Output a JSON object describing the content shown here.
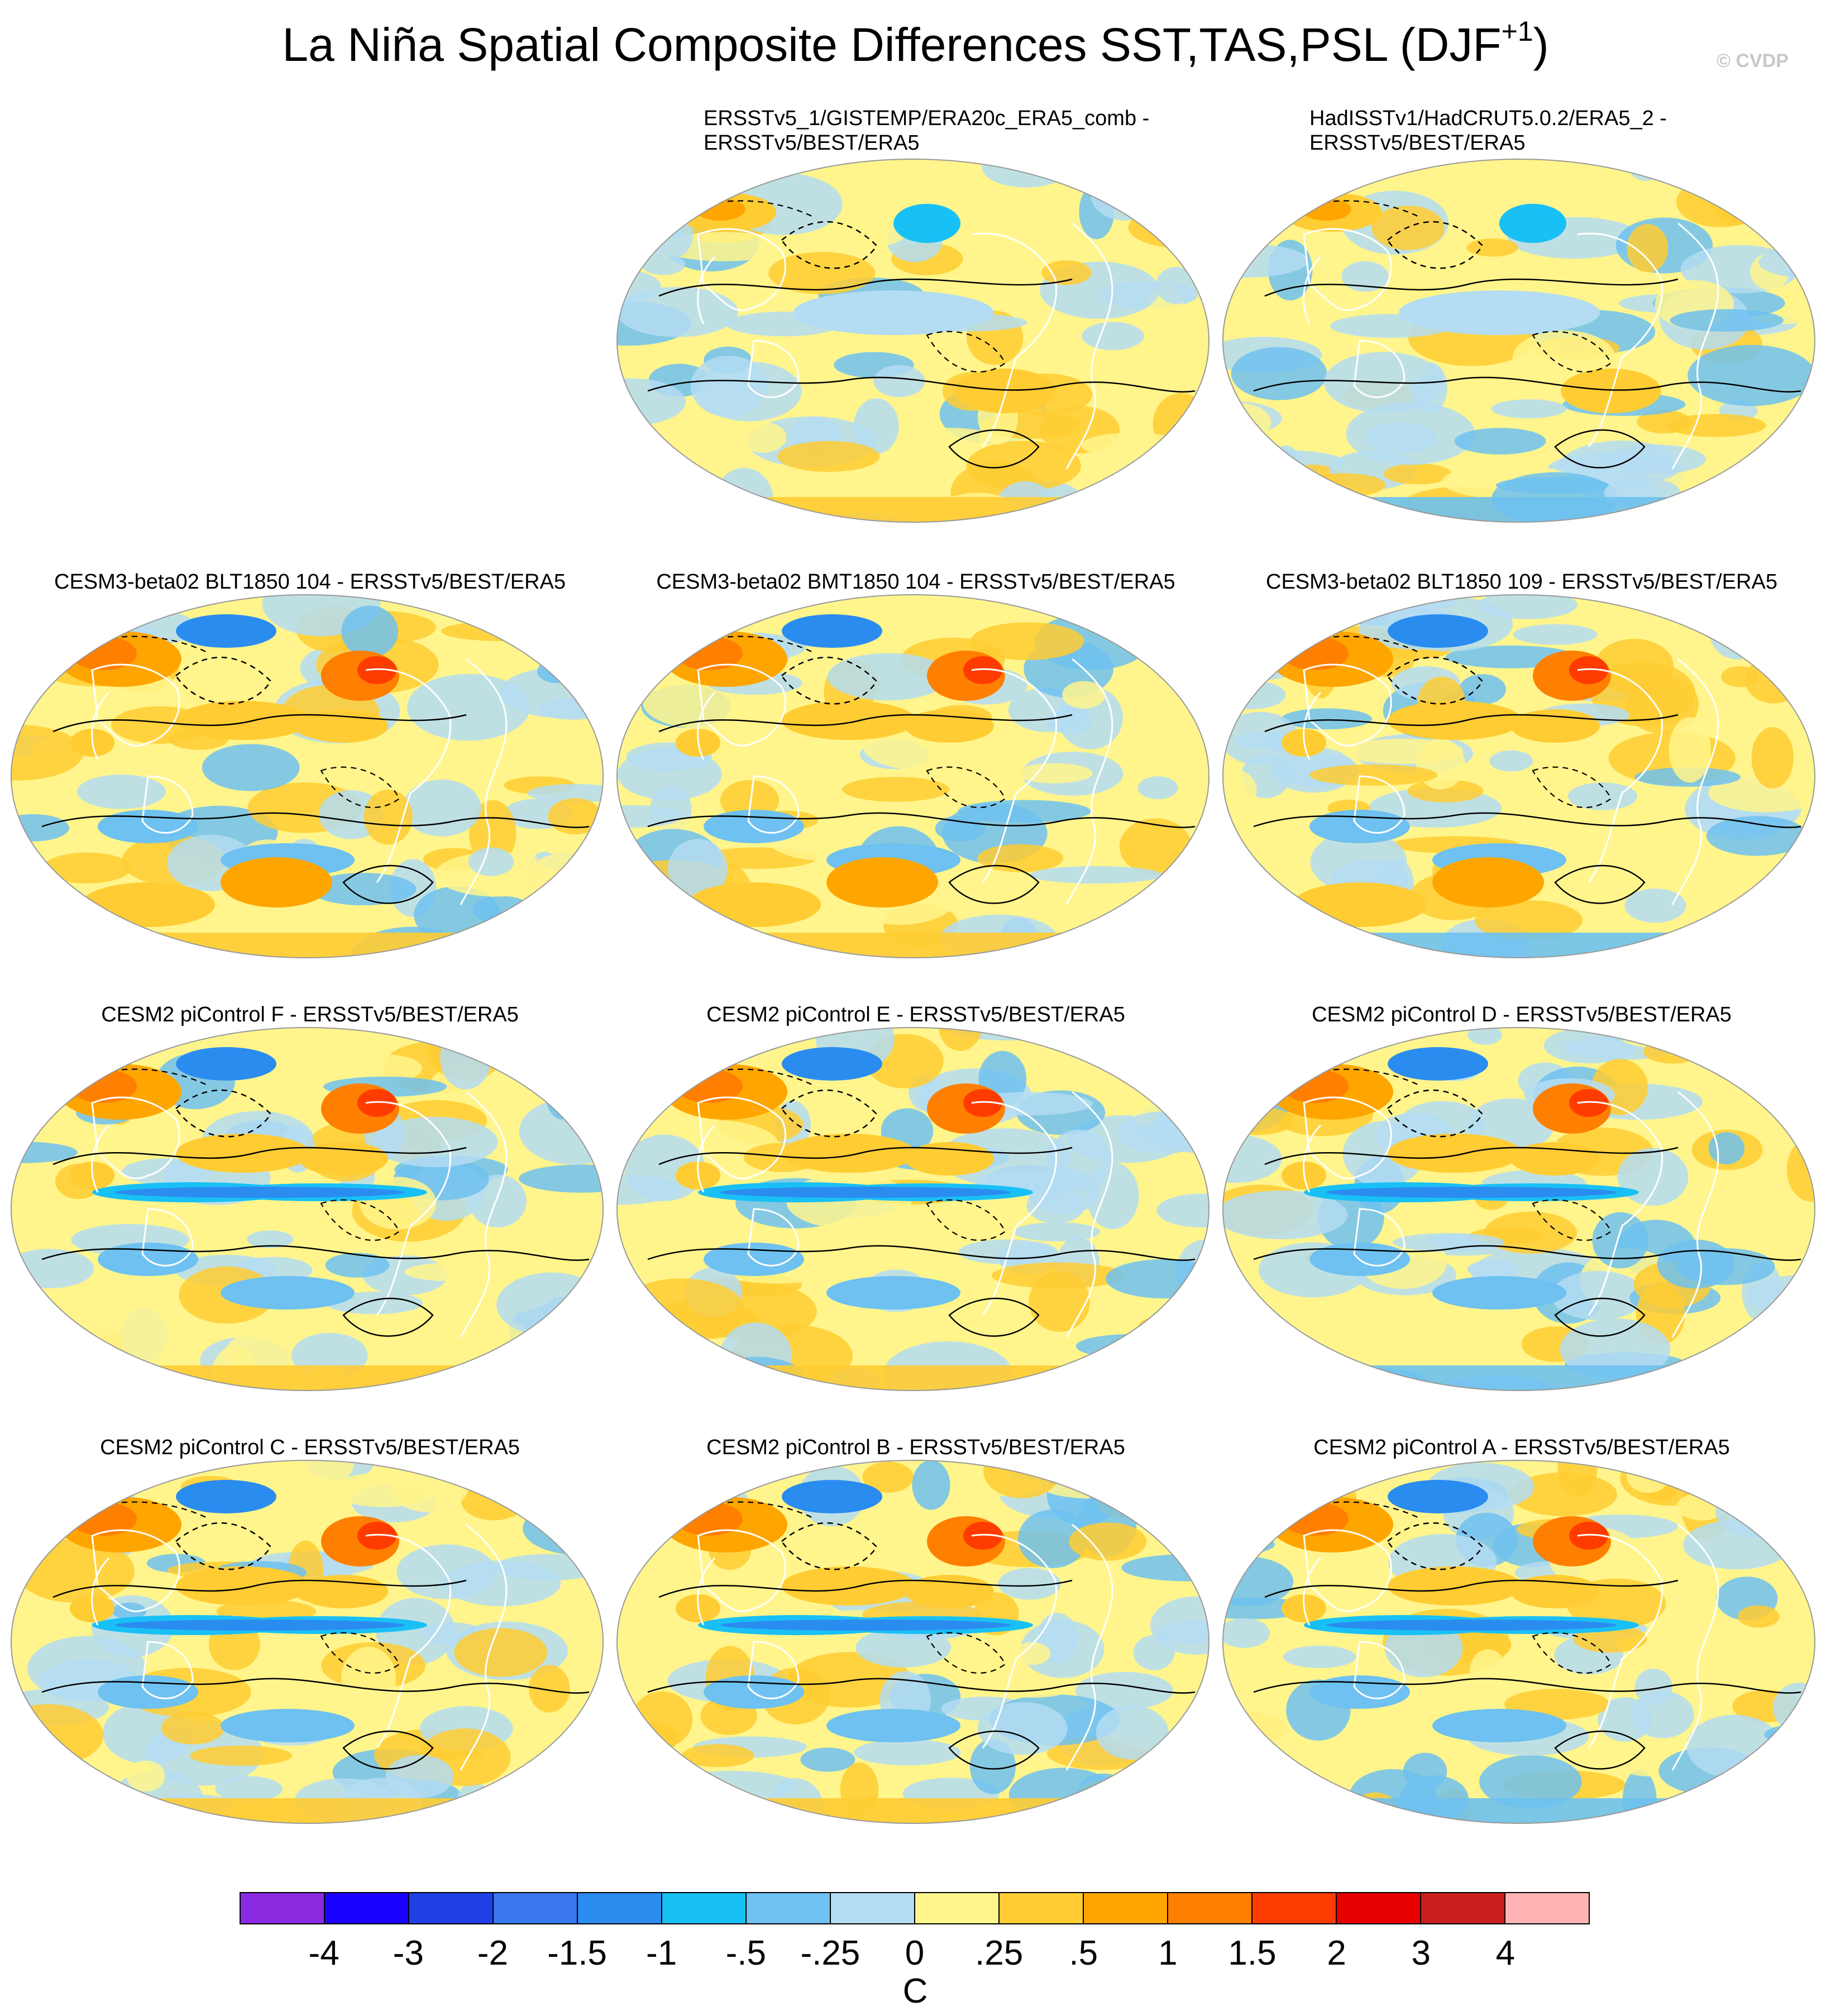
{
  "title": {
    "main": "La Niña Spatial Composite Differences SST,TAS,PSL (DJF",
    "sup": "+1",
    "close": ")",
    "watermark": "© CVDP"
  },
  "panels": [
    {
      "title_lines": [
        "ERSSTv5_1/GISTEMP/ERA20c_ERA5_comb -",
        "ERSSTv5/BEST/ERA5"
      ],
      "pattern": "obs"
    },
    {
      "title_lines": [
        "HadISSTv1/HadCRUT5.0.2/ERA5_2 -",
        "ERSSTv5/BEST/ERA5"
      ],
      "pattern": "obs"
    },
    {
      "title_lines": [
        "CESM3-beta02 BLT1850 104 - ERSSTv5/BEST/ERA5"
      ],
      "pattern": "model"
    },
    {
      "title_lines": [
        "CESM3-beta02 BMT1850 104 - ERSSTv5/BEST/ERA5"
      ],
      "pattern": "model"
    },
    {
      "title_lines": [
        "CESM3-beta02 BLT1850 109 - ERSSTv5/BEST/ERA5"
      ],
      "pattern": "model"
    },
    {
      "title_lines": [
        "CESM2 piControl F - ERSSTv5/BEST/ERA5"
      ],
      "pattern": "cesm2"
    },
    {
      "title_lines": [
        "CESM2 piControl E - ERSSTv5/BEST/ERA5"
      ],
      "pattern": "cesm2"
    },
    {
      "title_lines": [
        "CESM2 piControl D - ERSSTv5/BEST/ERA5"
      ],
      "pattern": "cesm2"
    },
    {
      "title_lines": [
        "CESM2 piControl C - ERSSTv5/BEST/ERA5"
      ],
      "pattern": "cesm2"
    },
    {
      "title_lines": [
        "CESM2 piControl B - ERSSTv5/BEST/ERA5"
      ],
      "pattern": "cesm2"
    },
    {
      "title_lines": [
        "CESM2 piControl A - ERSSTv5/BEST/ERA5"
      ],
      "pattern": "cesm2"
    }
  ],
  "chart_data": {
    "type": "heatmap",
    "title": "La Niña Spatial Composite Differences SST,TAS,PSL (DJF+1)",
    "projection": "Robinson (global)",
    "fields": [
      "SST/TAS difference (color shading)",
      "PSL difference (black contours; dashed negative)"
    ],
    "colorbar": {
      "unit": "C",
      "tick_labels": [
        "-4",
        "-3",
        "-2",
        "-1.5",
        "-1",
        "-.5",
        "-.25",
        "0",
        ".25",
        ".5",
        "1",
        "1.5",
        "2",
        "3",
        "4"
      ],
      "levels": [
        -4,
        -3,
        -2,
        -1.5,
        -1,
        -0.5,
        -0.25,
        0,
        0.25,
        0.5,
        1,
        1.5,
        2,
        3,
        4
      ],
      "colors": [
        "#8a2be2",
        "#1a00ff",
        "#2040e6",
        "#3a78ee",
        "#2b8cf0",
        "#19c0f5",
        "#6ec1f0",
        "#b4dcf2",
        "#fff58c",
        "#ffcc33",
        "#ffa500",
        "#ff7f00",
        "#ff3c00",
        "#e60000",
        "#c81e1e",
        "#ffb3b3"
      ]
    }
  }
}
